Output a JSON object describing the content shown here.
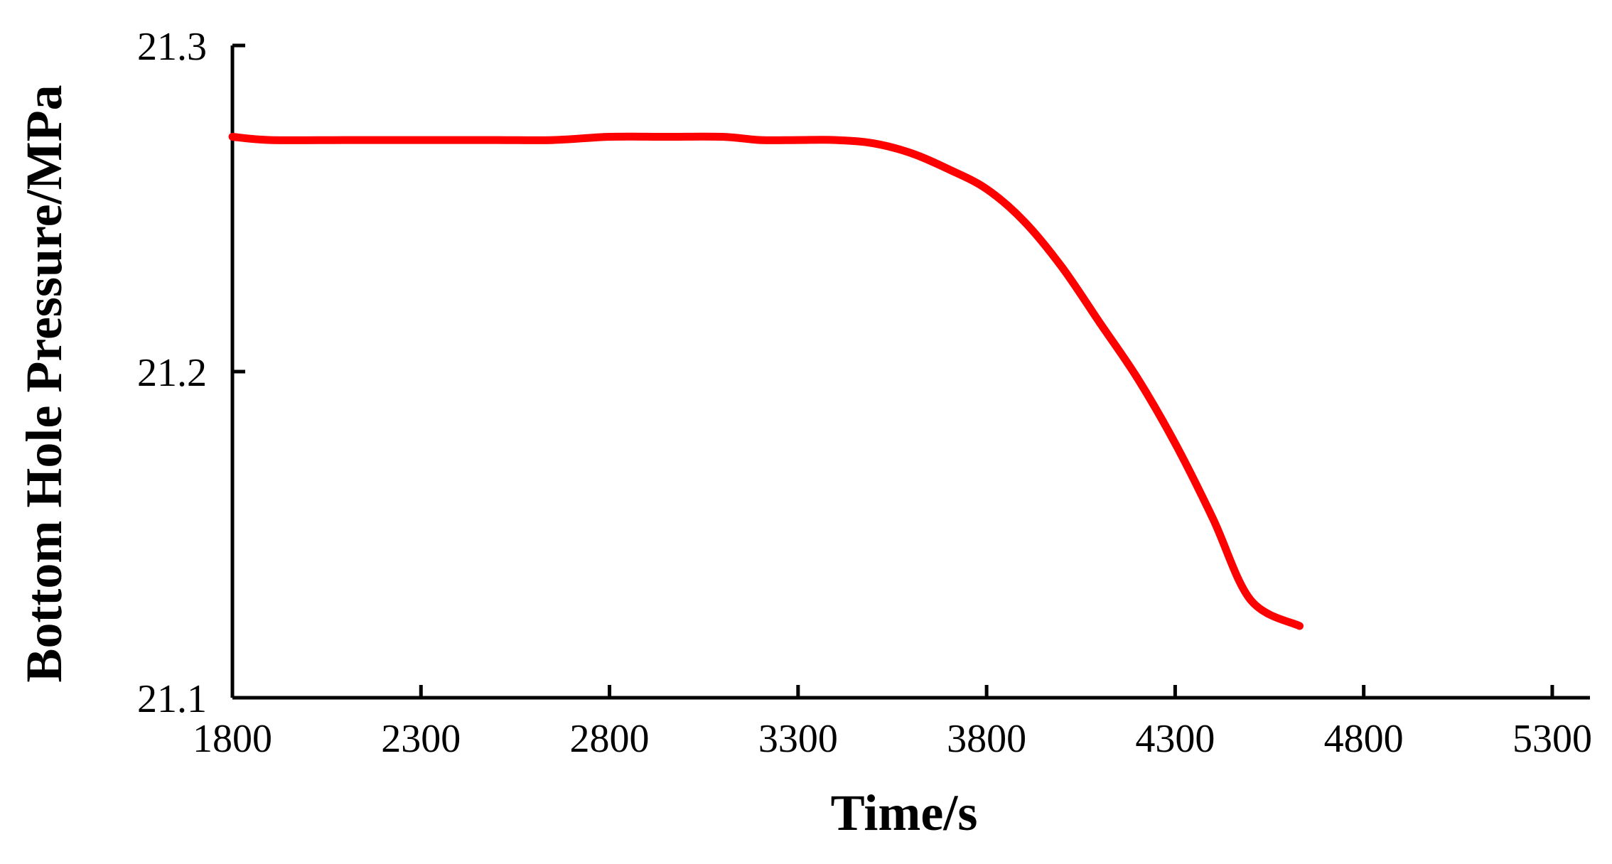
{
  "chart_data": {
    "type": "line",
    "title": "",
    "xlabel": "Time/s",
    "ylabel": "Bottom Hole Pressure/MPa",
    "xlim": [
      1800,
      5400
    ],
    "ylim": [
      21.1,
      21.3
    ],
    "xticks": [
      1800,
      2300,
      2800,
      3300,
      3800,
      4300,
      4800,
      5300
    ],
    "xtick_labels": [
      "1800",
      "2300",
      "2800",
      "3300",
      "3800",
      "4300",
      "4800",
      "5300"
    ],
    "yticks": [
      21.1,
      21.2,
      21.3
    ],
    "ytick_labels": [
      "21.1",
      "21.2",
      "21.3"
    ],
    "grid": false,
    "legend": false,
    "series": [
      {
        "color": "#ff0000",
        "x": [
          1800,
          1900,
          2100,
          2300,
          2500,
          2650,
          2800,
          2950,
          3100,
          3200,
          3300,
          3400,
          3500,
          3600,
          3700,
          3800,
          3900,
          4000,
          4100,
          4200,
          4300,
          4400,
          4500,
          4630
        ],
        "y": [
          21.272,
          21.271,
          21.271,
          21.271,
          21.271,
          21.271,
          21.272,
          21.272,
          21.272,
          21.271,
          21.271,
          21.271,
          21.27,
          21.267,
          21.262,
          21.256,
          21.246,
          21.232,
          21.215,
          21.198,
          21.178,
          21.155,
          21.13,
          21.122
        ]
      }
    ]
  }
}
